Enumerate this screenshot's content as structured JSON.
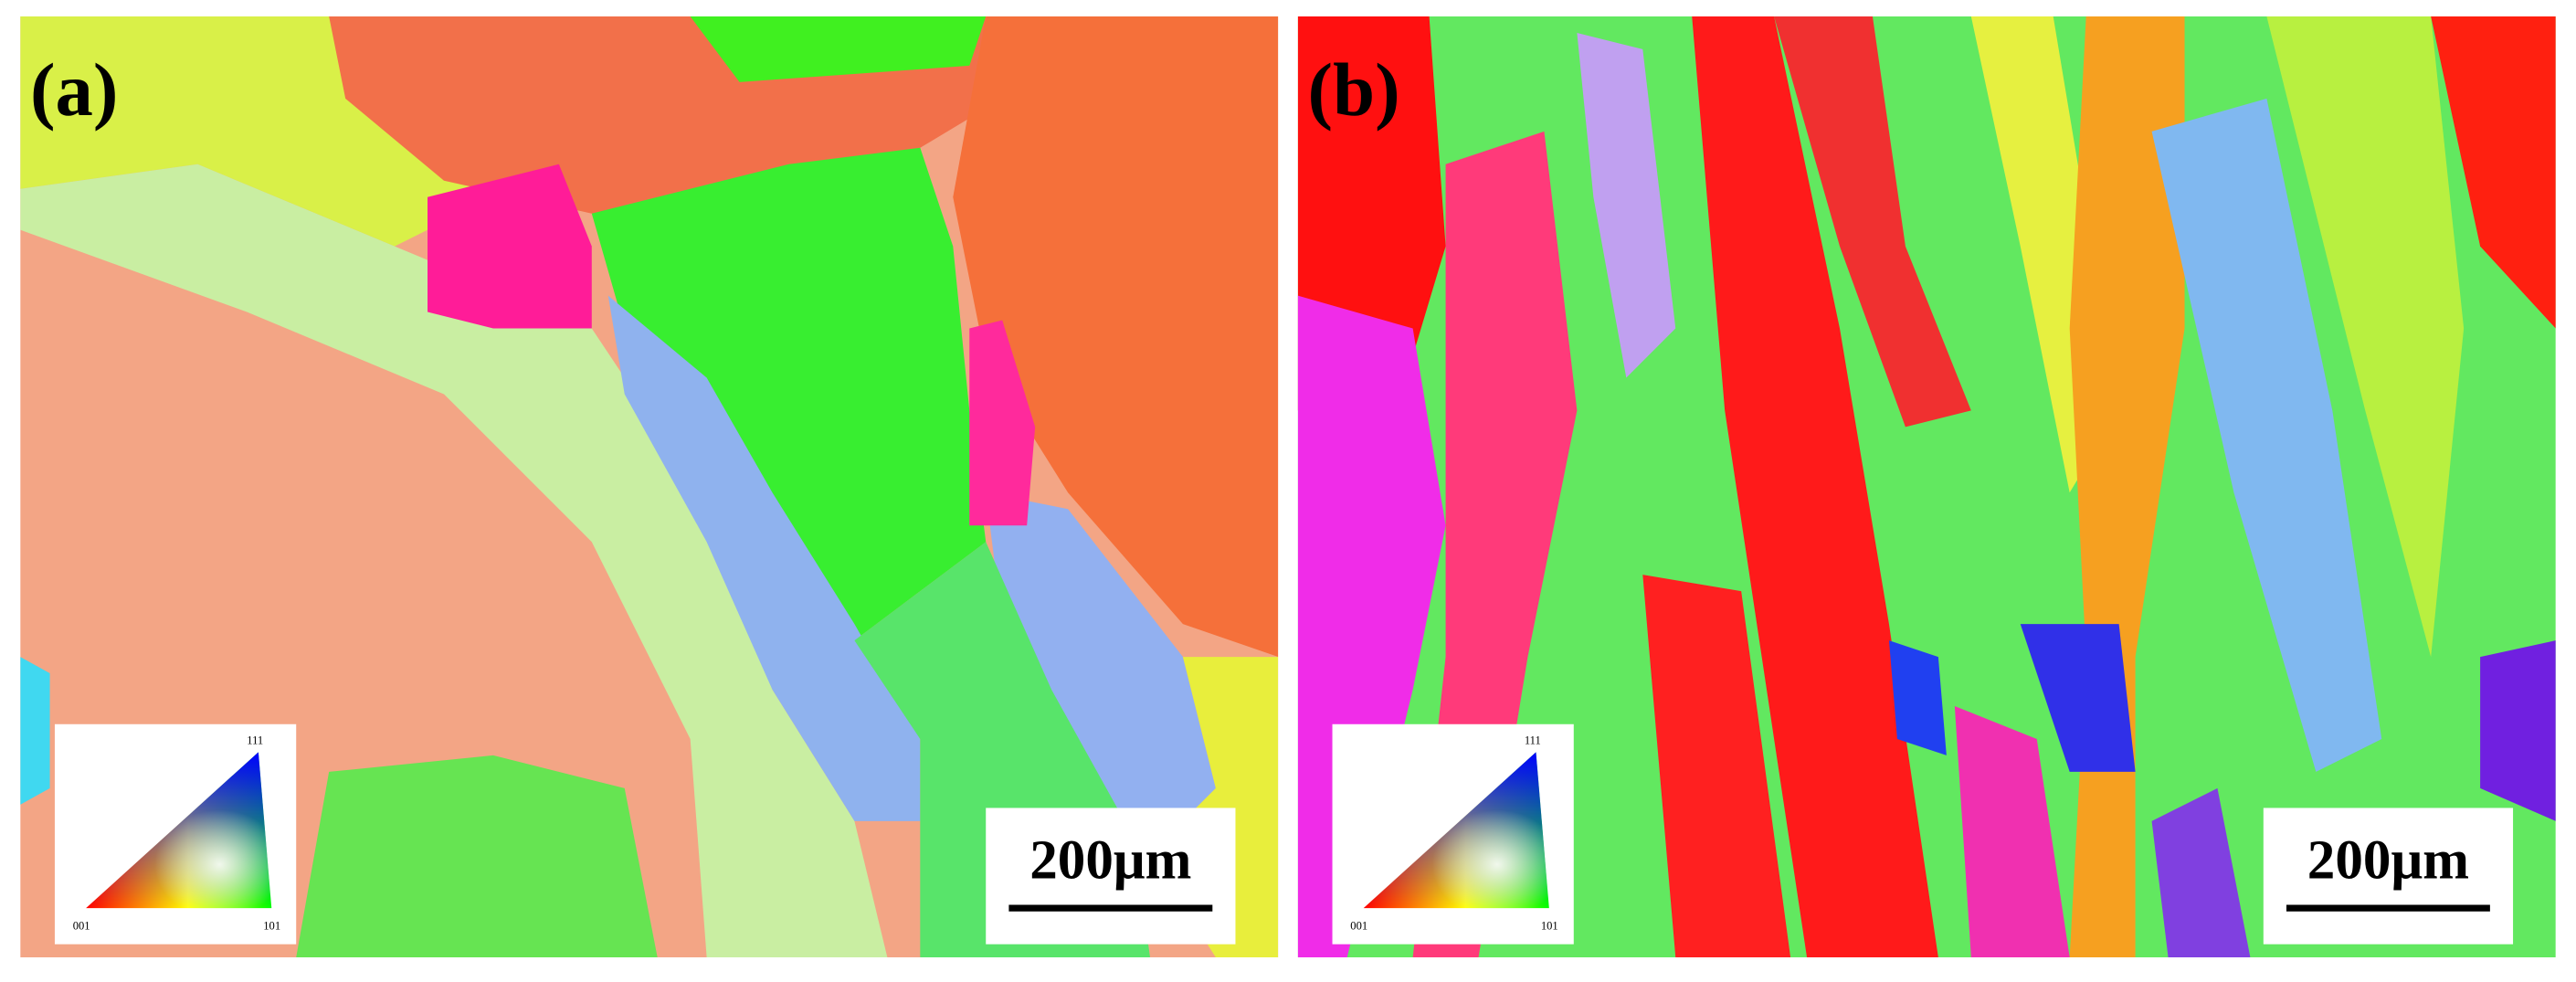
{
  "panels": [
    {
      "label": "(a)",
      "scale_bar": "200μm",
      "legend": {
        "corners": [
          "001",
          "101",
          "111"
        ]
      }
    },
    {
      "label": "(b)",
      "scale_bar": "200μm",
      "legend": {
        "corners": [
          "001",
          "101",
          "111"
        ]
      }
    }
  ]
}
